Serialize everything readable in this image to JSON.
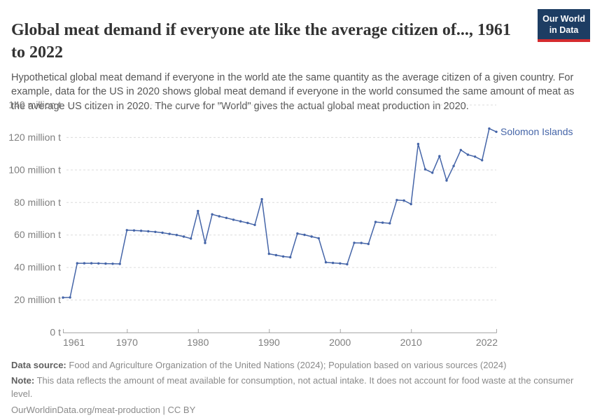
{
  "header": {
    "title_line1": "Global meat demand if everyone ate like the average citizen of..., 1961",
    "title_line2": "to 2022",
    "logo_line1": "Our World",
    "logo_line2": "in Data",
    "logo_bg_color": "#1d3d63",
    "logo_accent_color": "#d42b2f"
  },
  "subtitle": "Hypothetical global meat demand if everyone in the world ate the same quantity as the average citizen of a given country. For example, data for the US in 2020 shows global meat demand if everyone in the world consumed the same amount of meat as the average US citizen in 2020. The curve for \"World\" gives the actual global meat production in 2020.",
  "chart_data": {
    "type": "line",
    "title": "Global meat demand if everyone ate like the average citizen of..., 1961 to 2022",
    "unit": "million t",
    "xlim": [
      1961,
      2022
    ],
    "ylim": [
      0,
      140
    ],
    "grid": "dashed-horizontal",
    "x_ticks": [
      1961,
      1970,
      1980,
      1990,
      2000,
      2010,
      2022
    ],
    "y_ticks": [
      0,
      20,
      40,
      60,
      80,
      100,
      120,
      140
    ],
    "y_tick_labels": [
      "0 t",
      "20 million t",
      "40 million t",
      "60 million t",
      "80 million t",
      "100 million t",
      "120 million t",
      "140 million t"
    ],
    "legend_position": "end-of-line-label",
    "series": [
      {
        "name": "Solomon Islands",
        "color": "#4565a8",
        "years": [
          1961,
          1962,
          1963,
          1964,
          1965,
          1966,
          1967,
          1968,
          1969,
          1970,
          1971,
          1972,
          1973,
          1974,
          1975,
          1976,
          1977,
          1978,
          1979,
          1980,
          1981,
          1982,
          1983,
          1984,
          1985,
          1986,
          1987,
          1988,
          1989,
          1990,
          1991,
          1992,
          1993,
          1994,
          1995,
          1996,
          1997,
          1998,
          1999,
          2000,
          2001,
          2002,
          2003,
          2004,
          2005,
          2006,
          2007,
          2008,
          2009,
          2010,
          2011,
          2012,
          2013,
          2014,
          2015,
          2016,
          2017,
          2018,
          2019,
          2020,
          2021,
          2022
        ],
        "values": [
          21.5,
          21.6,
          42.6,
          42.6,
          42.6,
          42.5,
          42.4,
          42.3,
          42.2,
          63.0,
          62.8,
          62.6,
          62.3,
          61.9,
          61.4,
          60.7,
          60.0,
          59.0,
          57.8,
          74.8,
          55.1,
          72.7,
          71.5,
          70.5,
          69.4,
          68.4,
          67.4,
          66.2,
          82.0,
          48.4,
          47.6,
          46.8,
          46.3,
          60.9,
          60.1,
          59.0,
          58.0,
          43.2,
          42.8,
          42.5,
          42.0,
          55.2,
          55.1,
          54.5,
          68.0,
          67.6,
          67.2,
          81.5,
          81.2,
          79.0,
          116.0,
          100.4,
          98.3,
          108.5,
          93.5,
          102.5,
          112.3,
          109.4,
          108.2,
          106.0,
          125.5,
          123.5
        ]
      }
    ]
  },
  "footer": {
    "data_source_label": "Data source:",
    "data_source_text": "Food and Agriculture Organization of the United Nations (2024); Population based on various sources (2024)",
    "note_label": "Note:",
    "note_text": "This data reflects the amount of meat available for consumption, not actual intake. It does not account for food waste at the consumer level.",
    "citation": "OurWorldinData.org/meat-production | CC BY"
  }
}
